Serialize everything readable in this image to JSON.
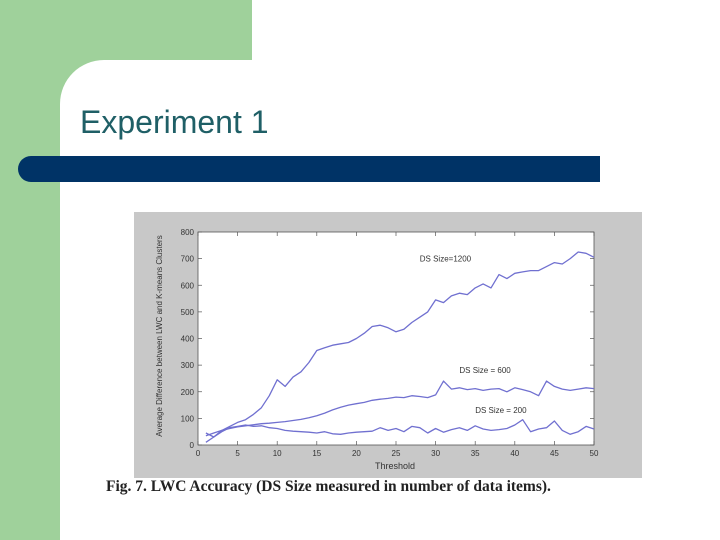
{
  "slide": {
    "title": "Experiment 1"
  },
  "caption": "Fig. 7. LWC Accuracy (DS Size measured in number of data items).",
  "colors": {
    "accent_green": "#9fd19b",
    "title_bar": "#003366",
    "title_text": "#1f5f66",
    "series_line": "#7070d0"
  },
  "chart_data": {
    "type": "line",
    "title": "",
    "xlabel": "Threshold",
    "ylabel": "Average Difference between LWC and K-means Clusters",
    "xlim": [
      0,
      50
    ],
    "ylim": [
      0,
      800
    ],
    "xticks": [
      "0",
      "5",
      "10",
      "15",
      "20",
      "25",
      "30",
      "35",
      "40",
      "45",
      "50"
    ],
    "yticks": [
      "0",
      "100",
      "200",
      "300",
      "400",
      "500",
      "600",
      "700",
      "800"
    ],
    "grid": false,
    "annotations": [
      {
        "text": "DS Size=1200",
        "x": 28,
        "y": 690
      },
      {
        "text": "DS Size = 600",
        "x": 33,
        "y": 270
      },
      {
        "text": "DS Size = 200",
        "x": 35,
        "y": 120
      }
    ],
    "series": [
      {
        "name": "DS Size=1200",
        "x": [
          1,
          2,
          3,
          4,
          5,
          6,
          7,
          8,
          9,
          10,
          11,
          12,
          13,
          14,
          15,
          16,
          17,
          18,
          19,
          20,
          21,
          22,
          23,
          24,
          25,
          26,
          27,
          28,
          29,
          30,
          31,
          32,
          33,
          34,
          35,
          36,
          37,
          38,
          39,
          40,
          41,
          42,
          43,
          44,
          45,
          46,
          47,
          48,
          49,
          50
        ],
        "values": [
          10,
          30,
          55,
          70,
          85,
          95,
          115,
          140,
          185,
          245,
          220,
          255,
          275,
          310,
          355,
          365,
          375,
          380,
          385,
          400,
          420,
          445,
          450,
          440,
          425,
          435,
          460,
          480,
          500,
          545,
          535,
          560,
          570,
          565,
          590,
          605,
          590,
          640,
          625,
          645,
          650,
          655,
          655,
          670,
          685,
          680,
          700,
          725,
          720,
          705
        ]
      },
      {
        "name": "DS Size = 600",
        "x": [
          1,
          2,
          3,
          4,
          5,
          6,
          7,
          8,
          9,
          10,
          11,
          12,
          13,
          14,
          15,
          16,
          17,
          18,
          19,
          20,
          21,
          22,
          23,
          24,
          25,
          26,
          27,
          28,
          29,
          30,
          31,
          32,
          33,
          34,
          35,
          36,
          37,
          38,
          39,
          40,
          41,
          42,
          43,
          44,
          45,
          46,
          47,
          48,
          49,
          50
        ],
        "values": [
          35,
          45,
          55,
          62,
          68,
          72,
          76,
          80,
          82,
          85,
          88,
          92,
          96,
          102,
          110,
          120,
          132,
          142,
          150,
          155,
          160,
          168,
          172,
          175,
          180,
          178,
          185,
          182,
          178,
          188,
          240,
          210,
          215,
          208,
          212,
          205,
          210,
          212,
          200,
          215,
          208,
          200,
          185,
          240,
          220,
          210,
          205,
          210,
          215,
          212
        ]
      },
      {
        "name": "DS Size = 200",
        "x": [
          1,
          2,
          3,
          4,
          5,
          6,
          7,
          8,
          9,
          10,
          11,
          12,
          13,
          14,
          15,
          16,
          17,
          18,
          19,
          20,
          21,
          22,
          23,
          24,
          25,
          26,
          27,
          28,
          29,
          30,
          31,
          32,
          33,
          34,
          35,
          36,
          37,
          38,
          39,
          40,
          41,
          42,
          43,
          44,
          45,
          46,
          47,
          48,
          49,
          50
        ],
        "values": [
          45,
          30,
          50,
          65,
          70,
          75,
          70,
          72,
          65,
          62,
          55,
          52,
          50,
          48,
          45,
          50,
          42,
          40,
          45,
          48,
          50,
          52,
          65,
          55,
          62,
          50,
          70,
          65,
          45,
          62,
          48,
          58,
          65,
          55,
          72,
          60,
          55,
          58,
          62,
          75,
          95,
          50,
          60,
          65,
          90,
          55,
          40,
          50,
          70,
          60
        ]
      }
    ]
  }
}
